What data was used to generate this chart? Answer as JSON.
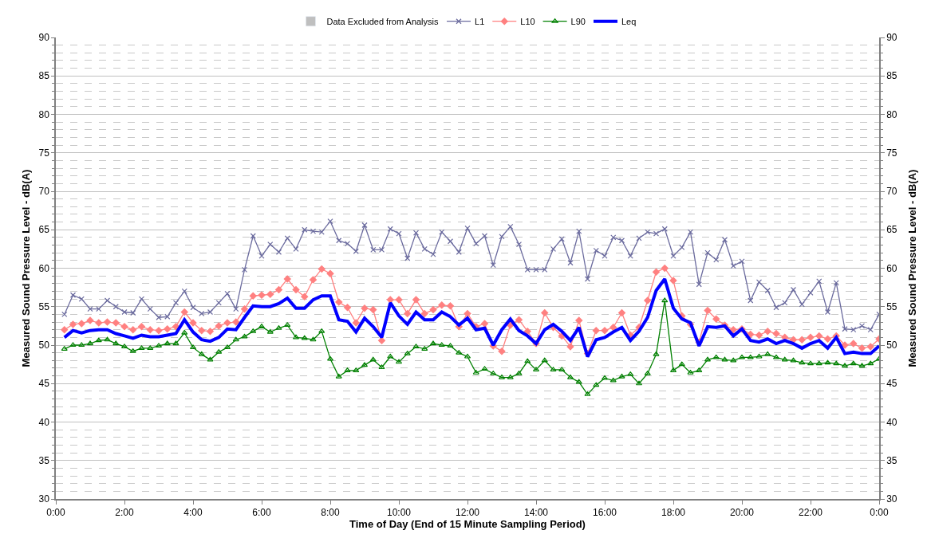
{
  "chart_data": {
    "type": "line",
    "xlabel": "Time of Day (End of 15 Minute Sampling Period)",
    "ylabel": "Measured Sound Pressure Level - dB(A)",
    "y2label": "Measured Sound Pressure Level - dB(A)",
    "x": [
      0.25,
      0.5,
      0.75,
      1,
      1.25,
      1.5,
      1.75,
      2,
      2.25,
      2.5,
      2.75,
      3,
      3.25,
      3.5,
      3.75,
      4,
      4.25,
      4.5,
      4.75,
      5,
      5.25,
      5.5,
      5.75,
      6,
      6.25,
      6.5,
      6.75,
      7,
      7.25,
      7.5,
      7.75,
      8,
      8.25,
      8.5,
      8.75,
      9,
      9.25,
      9.5,
      9.75,
      10,
      10.25,
      10.5,
      10.75,
      11,
      11.25,
      11.5,
      11.75,
      12,
      12.25,
      12.5,
      12.75,
      13,
      13.25,
      13.5,
      13.75,
      14,
      14.25,
      14.5,
      14.75,
      15,
      15.25,
      15.5,
      15.75,
      16,
      16.25,
      16.5,
      16.75,
      17,
      17.25,
      17.5,
      17.75,
      18,
      18.25,
      18.5,
      18.75,
      19,
      19.25,
      19.5,
      19.75,
      20,
      20.25,
      20.5,
      20.75,
      21,
      21.25,
      21.5,
      21.75,
      22,
      22.25,
      22.5,
      22.75,
      23,
      23.25,
      23.5,
      23.75,
      24
    ],
    "series": [
      {
        "name": "Data Excluded from Analysis",
        "type": "bar",
        "color": "#bfbfbf",
        "values": [
          null,
          null,
          null,
          null,
          null,
          null,
          null,
          null,
          null,
          null,
          null,
          null,
          null,
          null,
          null,
          null,
          null,
          null,
          null,
          null,
          null,
          null,
          null,
          null,
          null,
          null,
          null,
          null,
          null,
          null,
          null,
          null,
          null,
          null,
          null,
          null,
          null,
          null,
          null,
          null,
          null,
          null,
          null,
          null,
          null,
          null,
          null,
          null,
          null,
          null,
          null,
          null,
          null,
          null,
          null,
          null,
          null,
          null,
          null,
          null,
          null,
          null,
          null,
          null,
          null,
          null,
          null,
          null,
          null,
          null,
          null,
          null,
          null,
          null,
          null,
          null,
          null,
          null,
          null,
          null,
          null,
          null,
          null,
          null,
          null,
          null,
          null,
          null,
          null,
          null,
          null,
          null,
          null,
          null,
          null,
          null
        ]
      },
      {
        "name": "L1",
        "color": "#6b6b9e",
        "marker": "cross",
        "values": [
          54.0,
          56.5,
          56.0,
          54.7,
          54.7,
          55.8,
          55.0,
          54.3,
          54.2,
          56.0,
          54.7,
          53.6,
          53.7,
          55.5,
          57.0,
          54.9,
          54.1,
          54.3,
          55.5,
          56.7,
          54.7,
          59.8,
          64.2,
          61.6,
          63.1,
          62.1,
          63.9,
          62.5,
          65.0,
          64.8,
          64.7,
          66.1,
          63.6,
          63.2,
          62.2,
          65.6,
          62.4,
          62.4,
          65.1,
          64.5,
          61.3,
          64.6,
          62.5,
          61.8,
          64.7,
          63.5,
          62.1,
          65.2,
          63.2,
          64.2,
          60.4,
          64.1,
          65.4,
          63.1,
          59.8,
          59.8,
          59.8,
          62.5,
          63.8,
          60.7,
          64.8,
          58.6,
          62.3,
          61.6,
          64.0,
          63.6,
          61.6,
          63.9,
          64.7,
          64.5,
          65.1,
          61.6,
          62.7,
          64.7,
          57.9,
          62.0,
          61.1,
          63.7,
          60.3,
          60.9,
          55.8,
          58.2,
          57.1,
          54.9,
          55.5,
          57.2,
          55.3,
          56.8,
          58.3,
          54.3,
          58.1,
          52.1,
          52.0,
          52.5,
          52.0,
          54.0
        ]
      },
      {
        "name": "L10",
        "color": "#ff8080",
        "marker": "diamond",
        "values": [
          52.0,
          52.7,
          52.8,
          53.2,
          52.9,
          53.0,
          52.9,
          52.4,
          52.0,
          52.4,
          52.0,
          51.9,
          52.1,
          52.4,
          54.3,
          52.9,
          51.9,
          51.8,
          52.5,
          52.9,
          53.0,
          54.7,
          56.4,
          56.5,
          56.6,
          57.2,
          58.6,
          57.2,
          56.3,
          58.5,
          59.9,
          59.3,
          55.6,
          54.9,
          52.9,
          54.8,
          54.6,
          50.6,
          55.9,
          55.9,
          54.1,
          55.9,
          54.1,
          54.6,
          55.2,
          55.1,
          52.4,
          54.1,
          52.4,
          52.8,
          49.9,
          49.2,
          52.6,
          53.3,
          51.8,
          50.2,
          54.2,
          52.3,
          51.2,
          49.8,
          53.2,
          48.9,
          51.9,
          51.9,
          52.3,
          54.2,
          51.3,
          52.3,
          55.8,
          59.5,
          60.0,
          58.4,
          53.8,
          52.7,
          50.4,
          54.5,
          53.4,
          52.6,
          52.0,
          52.1,
          51.4,
          51.3,
          51.8,
          51.5,
          51.0,
          50.7,
          50.7,
          51.0,
          51.2,
          50.8,
          51.2,
          50.0,
          50.2,
          49.6,
          49.8,
          50.8
        ]
      },
      {
        "name": "L90",
        "color": "#008000",
        "marker": "triangle",
        "values": [
          49.5,
          50.0,
          50.0,
          50.2,
          50.6,
          50.7,
          50.2,
          49.8,
          49.2,
          49.6,
          49.6,
          49.9,
          50.2,
          50.2,
          51.6,
          49.7,
          48.8,
          48.1,
          49.1,
          49.7,
          50.7,
          51.1,
          51.8,
          52.4,
          51.7,
          52.2,
          52.6,
          51.0,
          50.9,
          50.7,
          51.8,
          48.2,
          45.9,
          46.7,
          46.7,
          47.4,
          48.1,
          47.1,
          48.5,
          47.8,
          48.9,
          49.8,
          49.5,
          50.2,
          50.0,
          49.9,
          49.0,
          48.5,
          46.4,
          46.9,
          46.3,
          45.8,
          45.8,
          46.3,
          47.9,
          46.8,
          48.0,
          46.8,
          46.8,
          45.8,
          45.2,
          43.6,
          44.8,
          45.7,
          45.4,
          45.9,
          46.2,
          45.0,
          46.3,
          48.8,
          55.8,
          46.7,
          47.5,
          46.4,
          46.7,
          48.1,
          48.4,
          48.1,
          48.0,
          48.4,
          48.4,
          48.5,
          48.8,
          48.4,
          48.1,
          48.0,
          47.7,
          47.6,
          47.6,
          47.7,
          47.6,
          47.3,
          47.6,
          47.3,
          47.6,
          48.2
        ]
      },
      {
        "name": "Leq",
        "color": "#0000ff",
        "marker": "none",
        "values": [
          51.0,
          51.9,
          51.6,
          51.9,
          52.0,
          52.0,
          51.5,
          51.2,
          50.9,
          51.3,
          51.1,
          51.1,
          51.3,
          51.5,
          53.3,
          51.7,
          50.7,
          50.5,
          51.0,
          52.1,
          52.0,
          53.6,
          55.1,
          55.0,
          55.0,
          55.4,
          56.1,
          54.8,
          54.8,
          55.9,
          56.4,
          56.4,
          53.3,
          53.1,
          51.7,
          53.5,
          52.4,
          51.0,
          55.5,
          53.8,
          52.7,
          54.3,
          53.3,
          53.3,
          54.3,
          53.7,
          52.6,
          53.5,
          52.0,
          52.2,
          50.0,
          52.0,
          53.4,
          51.9,
          51.2,
          50.2,
          52.0,
          52.7,
          51.8,
          50.6,
          52.3,
          48.5,
          50.7,
          51.0,
          51.7,
          52.3,
          50.6,
          51.8,
          53.6,
          57.1,
          58.6,
          54.8,
          53.4,
          52.9,
          49.9,
          52.4,
          52.3,
          52.5,
          51.2,
          52.1,
          50.6,
          50.4,
          50.8,
          50.2,
          50.6,
          50.2,
          49.6,
          50.2,
          50.6,
          49.6,
          51.0,
          48.9,
          49.1,
          48.9,
          48.9,
          49.9
        ]
      }
    ],
    "xlim": [
      0,
      24
    ],
    "xticks": [
      {
        "value": 0,
        "label": "0:00"
      },
      {
        "value": 2,
        "label": "2:00"
      },
      {
        "value": 4,
        "label": "4:00"
      },
      {
        "value": 6,
        "label": "6:00"
      },
      {
        "value": 8,
        "label": "8:00"
      },
      {
        "value": 10,
        "label": "10:00"
      },
      {
        "value": 12,
        "label": "12:00"
      },
      {
        "value": 14,
        "label": "14:00"
      },
      {
        "value": 16,
        "label": "16:00"
      },
      {
        "value": 18,
        "label": "18:00"
      },
      {
        "value": 20,
        "label": "20:00"
      },
      {
        "value": 22,
        "label": "22:00"
      },
      {
        "value": 24,
        "label": "0:00"
      }
    ],
    "ylim": [
      30,
      90
    ],
    "yticks": [
      30,
      35,
      40,
      45,
      50,
      55,
      60,
      65,
      70,
      75,
      80,
      85,
      90
    ],
    "y2lim": [
      30,
      90
    ],
    "y2ticks": [
      30,
      35,
      40,
      45,
      50,
      55,
      60,
      65,
      70,
      75,
      80,
      85,
      90
    ],
    "grid": "y",
    "legend": "top"
  }
}
